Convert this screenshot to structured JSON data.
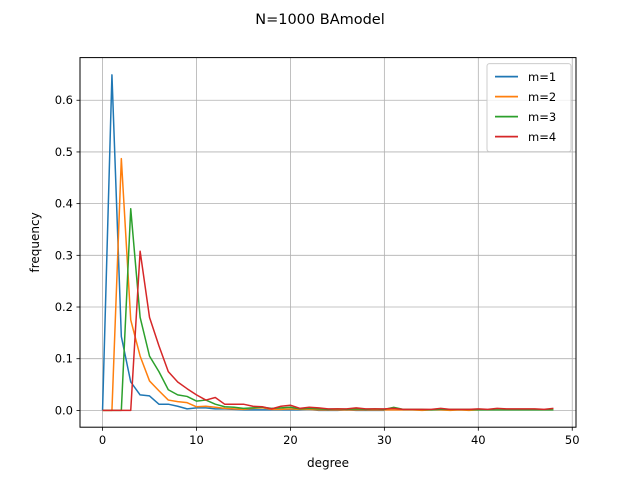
{
  "chart_data": {
    "type": "line",
    "title": "N=1000 BAmodel",
    "xlabel": "degree",
    "ylabel": "frequency",
    "xlim": [
      -2.4,
      50.4
    ],
    "ylim": [
      -0.0325,
      0.6825
    ],
    "xticks": [
      0,
      10,
      20,
      30,
      40,
      50
    ],
    "yticks": [
      0.0,
      0.1,
      0.2,
      0.3,
      0.4,
      0.5,
      0.6
    ],
    "xtick_labels": [
      "0",
      "10",
      "20",
      "30",
      "40",
      "50"
    ],
    "ytick_labels": [
      "0.0",
      "0.1",
      "0.2",
      "0.3",
      "0.4",
      "0.5",
      "0.6"
    ],
    "grid": true,
    "legend_position": "top-right",
    "series": [
      {
        "name": "m=1",
        "color": "#1f77b4",
        "x": [
          0,
          1,
          2,
          3,
          4,
          5,
          6,
          7,
          8,
          9,
          10,
          11,
          12,
          13,
          14,
          15,
          16,
          17,
          18,
          19,
          20,
          21,
          22,
          23,
          24,
          25,
          26,
          27,
          28,
          29,
          30
        ],
        "y": [
          0,
          0.649,
          0.143,
          0.055,
          0.03,
          0.028,
          0.012,
          0.012,
          0.008,
          0.003,
          0.005,
          0.005,
          0.003,
          0.003,
          0.002,
          0.001,
          0.001,
          0.001,
          0.001,
          0.001,
          0.001,
          0.001,
          0.002,
          0,
          0,
          0,
          0.001,
          0,
          0,
          0,
          0
        ]
      },
      {
        "name": "m=2",
        "color": "#ff7f0e",
        "x": [
          0,
          1,
          2,
          3,
          4,
          5,
          6,
          7,
          8,
          9,
          10,
          11,
          12,
          13,
          14,
          15,
          16,
          17,
          18,
          19,
          20,
          21,
          22,
          23,
          24,
          25,
          26,
          27,
          28,
          29,
          30,
          31,
          32,
          33,
          34,
          35,
          36,
          37,
          38,
          39,
          40
        ],
        "y": [
          0,
          0,
          0.487,
          0.175,
          0.105,
          0.057,
          0.038,
          0.02,
          0.017,
          0.015,
          0.007,
          0.008,
          0.006,
          0.004,
          0.003,
          0.002,
          0.004,
          0.005,
          0.002,
          0.002,
          0.003,
          0.002,
          0.002,
          0.001,
          0.001,
          0.001,
          0.001,
          0.001,
          0.001,
          0.001,
          0.001,
          0.001,
          0.001,
          0.001,
          0,
          0.001,
          0.001,
          0,
          0.001,
          0,
          0.001
        ]
      },
      {
        "name": "m=3",
        "color": "#2ca02c",
        "x": [
          0,
          1,
          2,
          3,
          4,
          5,
          6,
          7,
          8,
          9,
          10,
          11,
          12,
          13,
          14,
          15,
          16,
          17,
          18,
          19,
          20,
          21,
          22,
          23,
          24,
          25,
          26,
          27,
          28,
          29,
          30,
          31,
          32,
          33,
          34,
          35,
          36,
          37,
          38,
          39,
          40,
          41,
          42,
          43,
          44,
          45,
          46,
          47,
          48
        ],
        "y": [
          0,
          0,
          0,
          0.39,
          0.18,
          0.105,
          0.075,
          0.04,
          0.03,
          0.027,
          0.018,
          0.02,
          0.012,
          0.007,
          0.006,
          0.004,
          0.005,
          0.006,
          0.004,
          0.005,
          0.006,
          0.003,
          0.004,
          0.003,
          0.002,
          0.003,
          0.002,
          0.003,
          0.002,
          0.003,
          0.002,
          0.006,
          0.002,
          0.002,
          0.002,
          0.001,
          0.002,
          0.002,
          0.002,
          0.002,
          0.001,
          0.001,
          0.001,
          0.001,
          0.001,
          0.001,
          0.001,
          0.001,
          0.001
        ]
      },
      {
        "name": "m=4",
        "color": "#d62728",
        "x": [
          0,
          1,
          2,
          3,
          4,
          5,
          6,
          7,
          8,
          9,
          10,
          11,
          12,
          13,
          14,
          15,
          16,
          17,
          18,
          19,
          20,
          21,
          22,
          23,
          24,
          25,
          26,
          27,
          28,
          29,
          30,
          31,
          32,
          33,
          34,
          35,
          36,
          37,
          38,
          39,
          40,
          41,
          42,
          43,
          44,
          45,
          46,
          47,
          48
        ],
        "y": [
          0,
          0,
          0,
          0,
          0.308,
          0.18,
          0.125,
          0.075,
          0.055,
          0.042,
          0.03,
          0.02,
          0.025,
          0.012,
          0.012,
          0.012,
          0.008,
          0.007,
          0.003,
          0.008,
          0.01,
          0.004,
          0.006,
          0.005,
          0.003,
          0.003,
          0.003,
          0.005,
          0.003,
          0.003,
          0.003,
          0.004,
          0.002,
          0.002,
          0.002,
          0.002,
          0.004,
          0.002,
          0.002,
          0.002,
          0.003,
          0.002,
          0.004,
          0.003,
          0.003,
          0.003,
          0.003,
          0.002,
          0.004
        ]
      }
    ]
  }
}
